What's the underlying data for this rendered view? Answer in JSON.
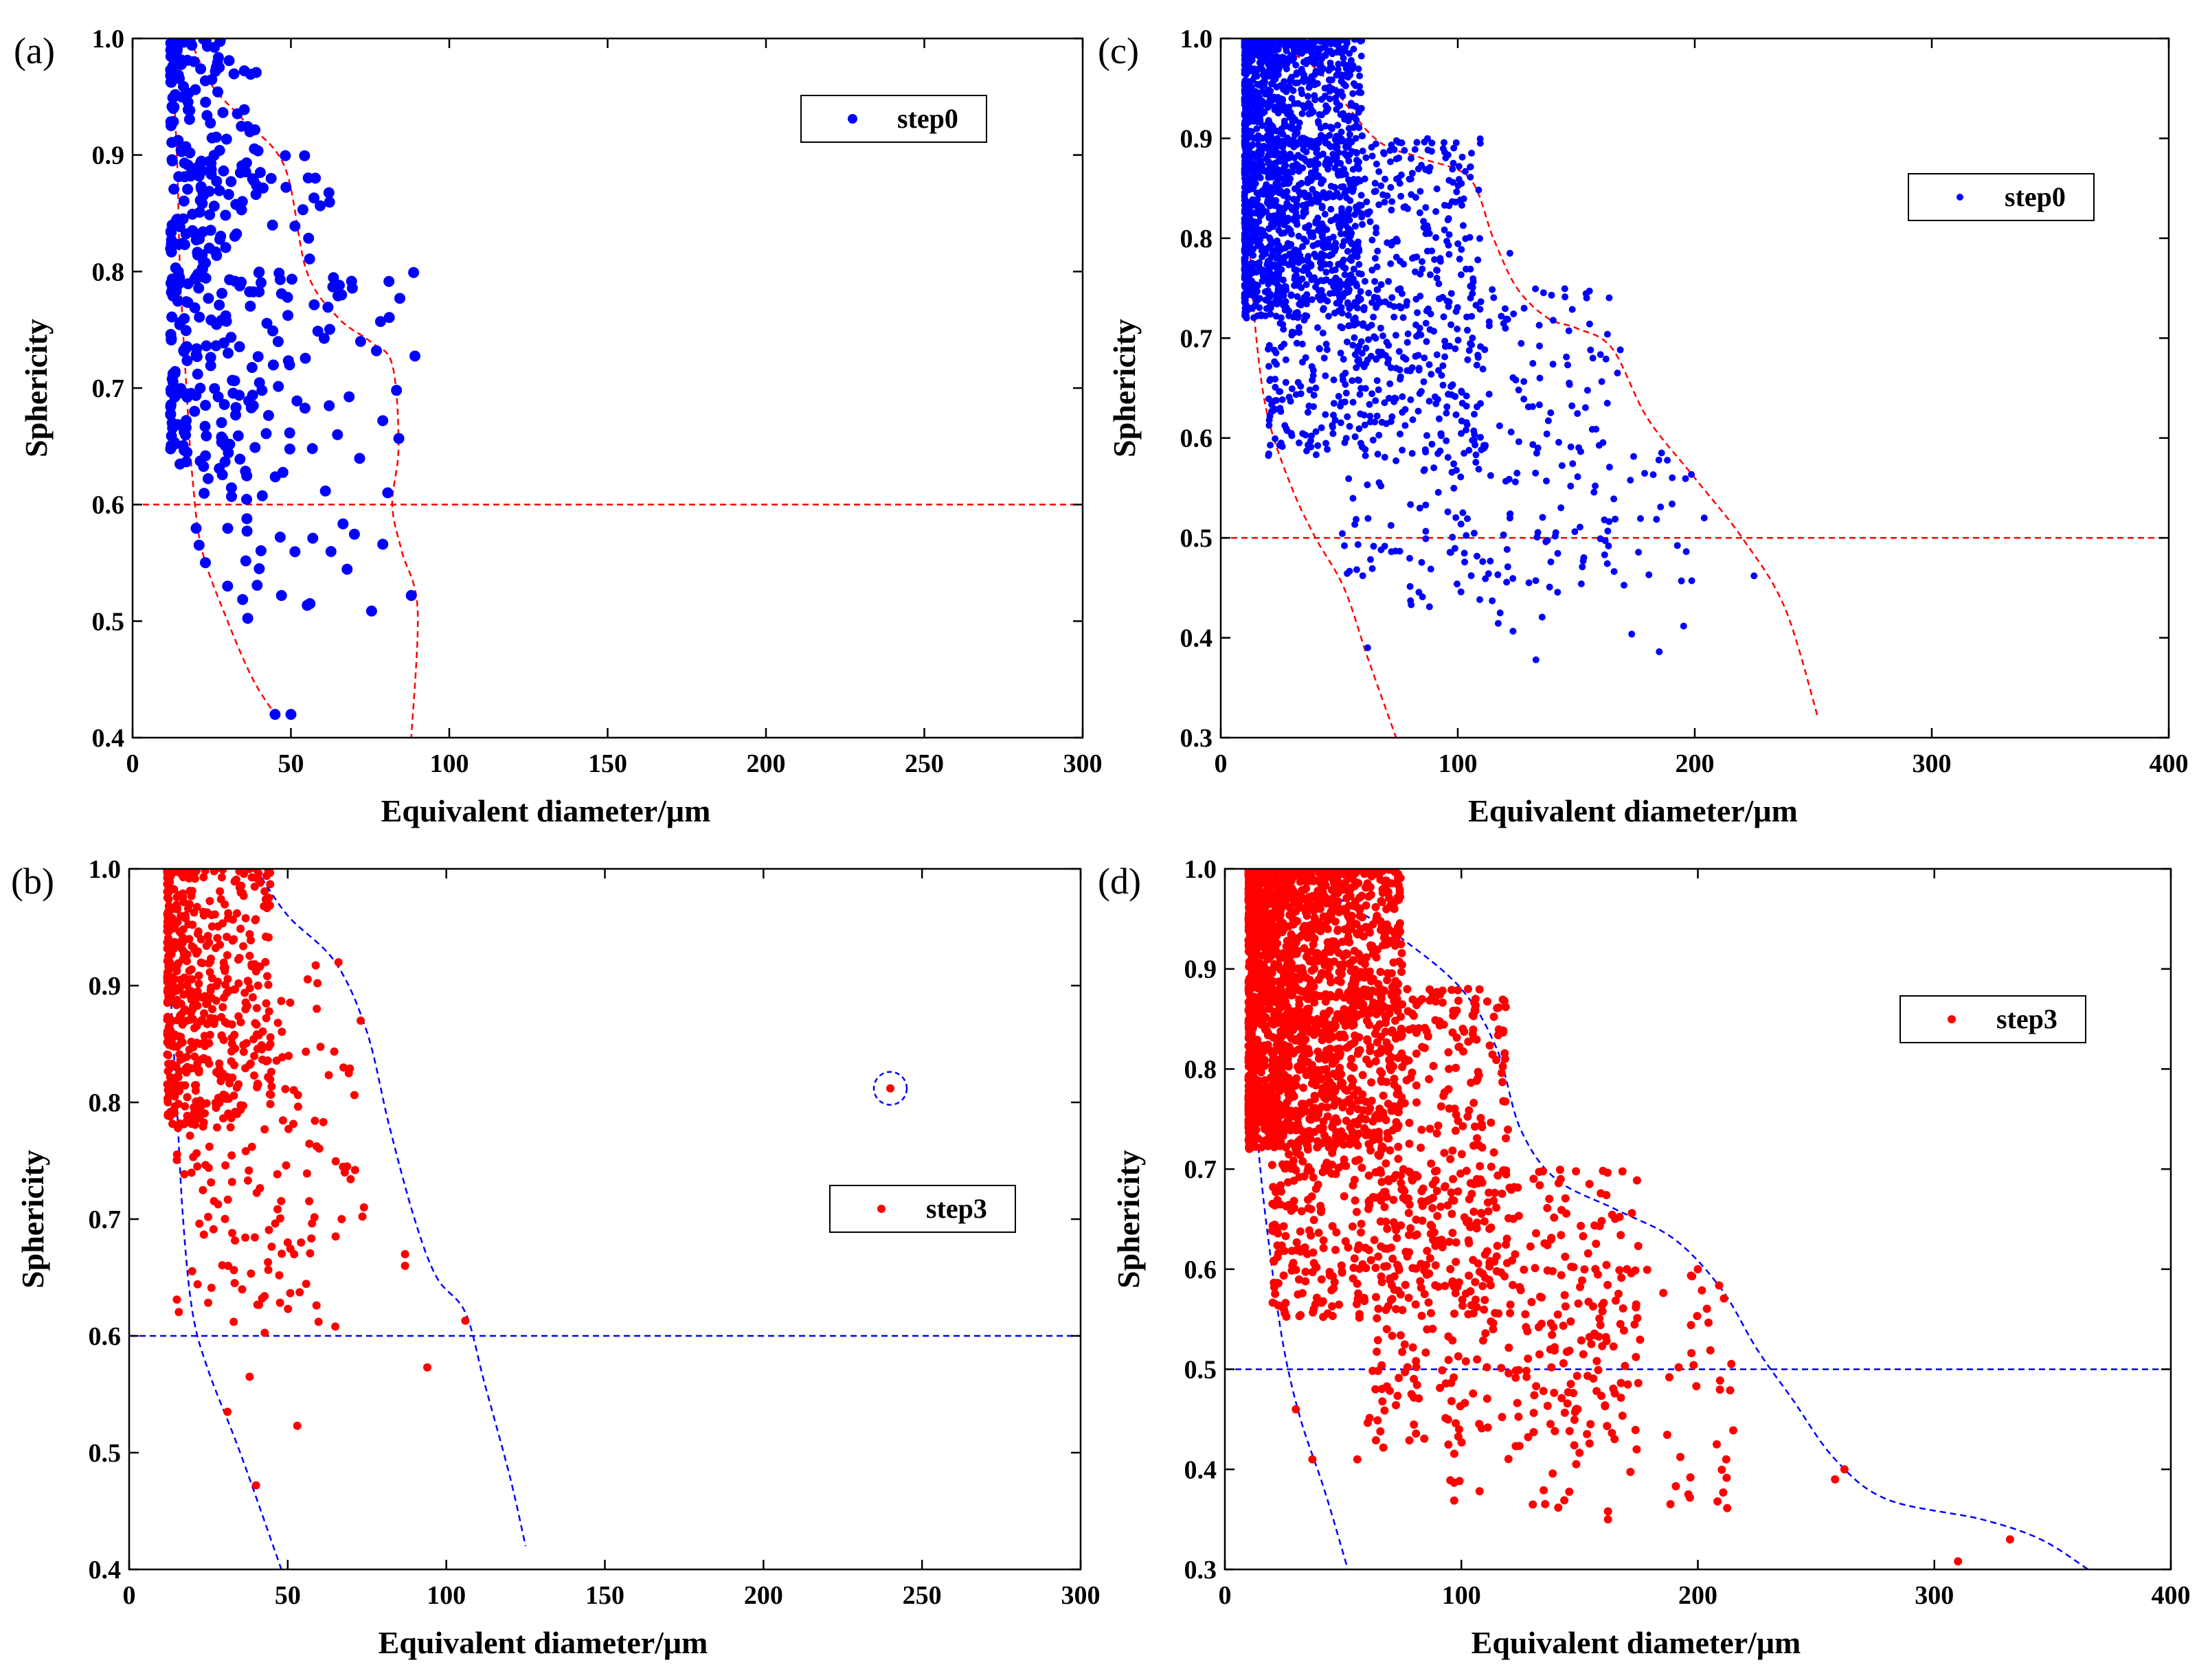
{
  "chart_data": [
    {
      "panel": "(a)",
      "type": "scatter",
      "title": "",
      "xlabel": "Equivalent diameter/μm",
      "ylabel": "Sphericity",
      "xlim": [
        0,
        300
      ],
      "ylim": [
        0.4,
        1.0
      ],
      "xticks": [
        0,
        50,
        100,
        150,
        200,
        250,
        300
      ],
      "yticks": [
        0.4,
        0.5,
        0.6,
        0.7,
        0.8,
        0.9,
        1.0
      ],
      "ytick_labels": [
        "0.4",
        "0.5",
        "0.6",
        "0.7",
        "0.8",
        "0.9",
        "1.0"
      ],
      "legend": "top-right",
      "legend_dot_radius": 7,
      "series": [
        {
          "name": "step0",
          "color": "#0000ff",
          "dot_radius": 8,
          "point_count": 420,
          "seed": 11,
          "clusters": [
            {
              "n": 260,
              "x": [
                12,
                40
              ],
              "y": [
                0.62,
                1.0
              ],
              "skew": 2
            },
            {
              "n": 120,
              "x": [
                20,
                65
              ],
              "y": [
                0.55,
                0.9
              ],
              "skew": 1.4
            },
            {
              "n": 40,
              "x": [
                30,
                90
              ],
              "y": [
                0.5,
                0.8
              ],
              "skew": 1
            }
          ],
          "points": [
            [
              45,
              0.42
            ],
            [
              50,
              0.42
            ],
            [
              56,
              0.515
            ],
            [
              88,
              0.522
            ],
            [
              79,
              0.566
            ],
            [
              79,
              0.672
            ],
            [
              77,
              0.732
            ],
            [
              72,
              0.74
            ],
            [
              66,
              0.78
            ],
            [
              30,
              0.53
            ],
            [
              40,
              0.545
            ],
            [
              47,
              0.522
            ]
          ]
        }
      ],
      "envelopes": [
        {
          "color": "#ff0000",
          "dashed": true,
          "points": [
            [
              12,
              1.0
            ],
            [
              14,
              0.9
            ],
            [
              15,
              0.8
            ],
            [
              17,
              0.7
            ],
            [
              19,
              0.62
            ],
            [
              22,
              0.56
            ],
            [
              30,
              0.5
            ],
            [
              38,
              0.45
            ],
            [
              45,
              0.42
            ]
          ]
        },
        {
          "color": "#ff0000",
          "dashed": true,
          "points": [
            [
              18,
              1.0
            ],
            [
              25,
              0.96
            ],
            [
              35,
              0.93
            ],
            [
              48,
              0.89
            ],
            [
              55,
              0.8
            ],
            [
              65,
              0.76
            ],
            [
              75,
              0.74
            ],
            [
              82,
              0.72
            ],
            [
              84,
              0.65
            ],
            [
              82,
              0.6
            ],
            [
              85,
              0.56
            ],
            [
              90,
              0.51
            ],
            [
              88,
              0.4
            ]
          ]
        }
      ],
      "reference_lines": [
        {
          "y": 0.6,
          "color": "#ff0000"
        }
      ]
    },
    {
      "panel": "(c)",
      "type": "scatter",
      "title": "",
      "xlabel": "Equivalent diameter/μm",
      "ylabel": "Sphericity",
      "xlim": [
        0,
        400
      ],
      "ylim": [
        0.3,
        1.0
      ],
      "xticks": [
        0,
        100,
        200,
        300,
        400
      ],
      "yticks": [
        0.3,
        0.4,
        0.5,
        0.6,
        0.7,
        0.8,
        0.9,
        1.0
      ],
      "ytick_labels": [
        "0.3",
        "0.4",
        "0.5",
        "0.6",
        "0.7",
        "0.8",
        "0.9",
        "1.0"
      ],
      "legend": "top-right",
      "legend_dot_radius": 5,
      "series": [
        {
          "name": "step0",
          "color": "#0000ff",
          "dot_radius": 5,
          "point_count": 2520,
          "seed": 23,
          "clusters": [
            {
              "n": 1500,
              "x": [
                10,
                60
              ],
              "y": [
                0.72,
                1.0
              ],
              "skew": 2
            },
            {
              "n": 700,
              "x": [
                20,
                110
              ],
              "y": [
                0.58,
                0.9
              ],
              "skew": 1.5
            },
            {
              "n": 250,
              "x": [
                50,
                170
              ],
              "y": [
                0.45,
                0.75
              ],
              "skew": 1.2
            },
            {
              "n": 70,
              "x": [
                80,
                200
              ],
              "y": [
                0.4,
                0.6
              ],
              "skew": 1
            }
          ],
          "points": [
            [
              62,
              0.39
            ],
            [
              133,
              0.378
            ],
            [
              185,
              0.386
            ],
            [
              225,
              0.462
            ],
            [
              204,
              0.52
            ],
            [
              186,
              0.585
            ],
            [
              157,
              0.68
            ],
            [
              122,
              0.785
            ],
            [
              128,
              0.73
            ]
          ]
        }
      ],
      "envelopes": [
        {
          "color": "#ff0000",
          "dashed": true,
          "points": [
            [
              10,
              1.0
            ],
            [
              10,
              0.9
            ],
            [
              12,
              0.8
            ],
            [
              15,
              0.7
            ],
            [
              20,
              0.62
            ],
            [
              30,
              0.55
            ],
            [
              40,
              0.5
            ],
            [
              52,
              0.45
            ],
            [
              62,
              0.38
            ],
            [
              74,
              0.3
            ]
          ]
        },
        {
          "color": "#ff0000",
          "dashed": true,
          "points": [
            [
              15,
              1.0
            ],
            [
              40,
              0.97
            ],
            [
              65,
              0.9
            ],
            [
              85,
              0.88
            ],
            [
              105,
              0.86
            ],
            [
              115,
              0.8
            ],
            [
              125,
              0.75
            ],
            [
              138,
              0.72
            ],
            [
              150,
              0.71
            ],
            [
              165,
              0.69
            ],
            [
              180,
              0.62
            ],
            [
              200,
              0.56
            ],
            [
              220,
              0.5
            ],
            [
              238,
              0.43
            ],
            [
              252,
              0.32
            ]
          ]
        }
      ],
      "reference_lines": [
        {
          "y": 0.5,
          "color": "#ff0000"
        }
      ]
    },
    {
      "panel": "(b)",
      "type": "scatter",
      "title": "",
      "xlabel": "Equivalent diameter/μm",
      "ylabel": "Sphericity",
      "xlim": [
        0,
        300
      ],
      "ylim": [
        0.4,
        1.0
      ],
      "xticks": [
        0,
        50,
        100,
        150,
        200,
        250,
        300
      ],
      "yticks": [
        0.4,
        0.5,
        0.6,
        0.7,
        0.8,
        0.9,
        1.0
      ],
      "ytick_labels": [
        "0.4",
        "0.5",
        "0.6",
        "0.7",
        "0.8",
        "0.9",
        "1.0"
      ],
      "legend": "center-right",
      "legend_dot_radius": 6,
      "series": [
        {
          "name": "step3",
          "color": "#ff0000",
          "dot_radius": 6,
          "point_count": 640,
          "seed": 37,
          "clusters": [
            {
              "n": 450,
              "x": [
                12,
                45
              ],
              "y": [
                0.78,
                1.0
              ],
              "skew": 2
            },
            {
              "n": 140,
              "x": [
                15,
                60
              ],
              "y": [
                0.62,
                0.92
              ],
              "skew": 1.5
            },
            {
              "n": 50,
              "x": [
                20,
                80
              ],
              "y": [
                0.6,
                0.85
              ],
              "skew": 1
            }
          ],
          "points": [
            [
              240,
              0.812
            ],
            [
              94,
              0.573
            ],
            [
              53,
              0.523
            ],
            [
              40,
              0.472
            ],
            [
              31,
              0.535
            ],
            [
              38,
              0.565
            ],
            [
              65,
              0.608
            ],
            [
              106,
              0.613
            ],
            [
              87,
              0.66
            ],
            [
              87,
              0.67
            ],
            [
              73,
              0.87
            ],
            [
              66,
              0.92
            ],
            [
              50,
              0.68
            ],
            [
              52,
              0.67
            ],
            [
              67,
              0.7
            ],
            [
              68,
              0.74
            ]
          ]
        }
      ],
      "envelopes": [
        {
          "color": "#0000ff",
          "dashed": true,
          "points": [
            [
              12,
              1.0
            ],
            [
              13,
              0.9
            ],
            [
              15,
              0.8
            ],
            [
              17,
              0.7
            ],
            [
              20,
              0.62
            ],
            [
              25,
              0.57
            ],
            [
              35,
              0.5
            ],
            [
              48,
              0.4
            ]
          ]
        },
        {
          "color": "#0000ff",
          "dashed": true,
          "points": [
            [
              40,
              1.0
            ],
            [
              50,
              0.96
            ],
            [
              65,
              0.92
            ],
            [
              75,
              0.86
            ],
            [
              82,
              0.78
            ],
            [
              90,
              0.7
            ],
            [
              97,
              0.65
            ],
            [
              106,
              0.62
            ],
            [
              112,
              0.56
            ],
            [
              120,
              0.48
            ],
            [
              125,
              0.42
            ]
          ]
        }
      ],
      "reference_lines": [
        {
          "y": 0.6,
          "color": "#0000ff"
        }
      ],
      "annotation_circle": {
        "x": 240,
        "y": 0.812,
        "color": "#0000ff"
      }
    },
    {
      "panel": "(d)",
      "type": "scatter",
      "title": "",
      "xlabel": "Equivalent diameter/μm",
      "ylabel": "Sphericity",
      "xlim": [
        0,
        400
      ],
      "ylim": [
        0.3,
        1.0
      ],
      "xticks": [
        0,
        100,
        200,
        300,
        400
      ],
      "yticks": [
        0.3,
        0.4,
        0.5,
        0.6,
        0.7,
        0.8,
        0.9,
        1.0
      ],
      "ytick_labels": [
        "0.3",
        "0.4",
        "0.5",
        "0.6",
        "0.7",
        "0.8",
        "0.9",
        "1.0"
      ],
      "legend": "top-right",
      "legend_dot_radius": 6,
      "series": [
        {
          "name": "step3",
          "color": "#ff0000",
          "dot_radius": 6,
          "point_count": 2720,
          "seed": 51,
          "clusters": [
            {
              "n": 1600,
              "x": [
                10,
                75
              ],
              "y": [
                0.72,
                1.0
              ],
              "skew": 2
            },
            {
              "n": 700,
              "x": [
                20,
                120
              ],
              "y": [
                0.55,
                0.88
              ],
              "skew": 1.5
            },
            {
              "n": 300,
              "x": [
                60,
                175
              ],
              "y": [
                0.42,
                0.7
              ],
              "skew": 1.2
            },
            {
              "n": 120,
              "x": [
                90,
                215
              ],
              "y": [
                0.36,
                0.6
              ],
              "skew": 1
            }
          ],
          "points": [
            [
              310,
              0.308
            ],
            [
              332,
              0.33
            ],
            [
              262,
              0.4
            ],
            [
              258,
              0.39
            ],
            [
              212,
              0.41
            ],
            [
              208,
              0.425
            ],
            [
              196,
              0.375
            ],
            [
              162,
              0.35
            ],
            [
              162,
              0.358
            ],
            [
              56,
              0.41
            ],
            [
              37,
              0.41
            ],
            [
              30,
              0.46
            ],
            [
              200,
              0.6
            ],
            [
              170,
              0.6
            ],
            [
              142,
              0.69
            ],
            [
              106,
              0.87
            ]
          ]
        }
      ],
      "envelopes": [
        {
          "color": "#0000ff",
          "dashed": true,
          "points": [
            [
              10,
              1.0
            ],
            [
              11,
              0.9
            ],
            [
              12,
              0.8
            ],
            [
              15,
              0.7
            ],
            [
              20,
              0.6
            ],
            [
              25,
              0.52
            ],
            [
              32,
              0.45
            ],
            [
              42,
              0.38
            ],
            [
              52,
              0.3
            ]
          ]
        },
        {
          "color": "#0000ff",
          "dashed": true,
          "points": [
            [
              30,
              1.0
            ],
            [
              55,
              0.96
            ],
            [
              75,
              0.93
            ],
            [
              100,
              0.88
            ],
            [
              115,
              0.82
            ],
            [
              125,
              0.74
            ],
            [
              140,
              0.69
            ],
            [
              165,
              0.66
            ],
            [
              190,
              0.63
            ],
            [
              210,
              0.58
            ],
            [
              225,
              0.52
            ],
            [
              240,
              0.47
            ],
            [
              258,
              0.41
            ],
            [
              280,
              0.37
            ],
            [
              320,
              0.35
            ],
            [
              345,
              0.33
            ],
            [
              365,
              0.3
            ]
          ]
        }
      ],
      "reference_lines": [
        {
          "y": 0.5,
          "color": "#0000ff"
        }
      ]
    }
  ]
}
